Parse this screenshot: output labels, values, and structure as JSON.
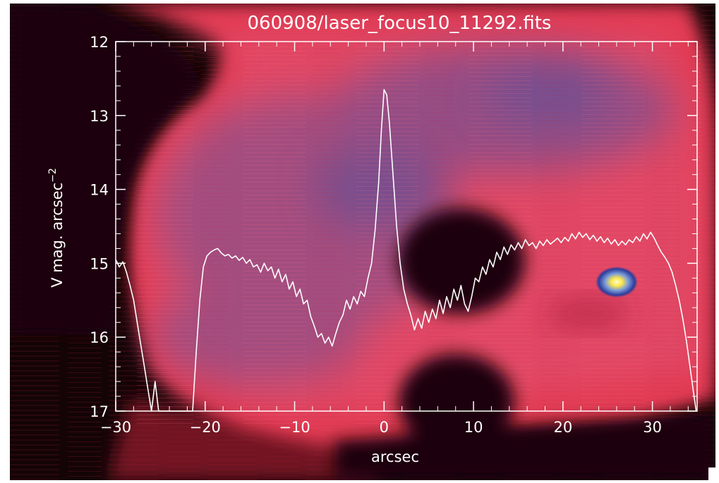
{
  "chart_data": {
    "type": "line",
    "title": "060908/laser_focus10_11292.fits",
    "xlabel": "arcsec",
    "ylabel": "V mag. arcsec",
    "ylabel_superscript": "−2",
    "xlim": [
      -30,
      35
    ],
    "ylim": [
      17,
      12
    ],
    "y_inverted": true,
    "x_ticks": [
      {
        "value": -30,
        "label": "−30"
      },
      {
        "value": -20,
        "label": "−20"
      },
      {
        "value": -10,
        "label": "−10"
      },
      {
        "value": 0,
        "label": "0"
      },
      {
        "value": 10,
        "label": "10"
      },
      {
        "value": 20,
        "label": "20"
      },
      {
        "value": 30,
        "label": "30"
      }
    ],
    "y_ticks": [
      {
        "value": 12,
        "label": "12"
      },
      {
        "value": 13,
        "label": "13"
      },
      {
        "value": 14,
        "label": "14"
      },
      {
        "value": 15,
        "label": "15"
      },
      {
        "value": 16,
        "label": "16"
      },
      {
        "value": 17,
        "label": "17"
      }
    ],
    "grid": false,
    "colors": {
      "line": "#ffffff",
      "background": "#e8465c",
      "dark": "#140406",
      "haze": "#6b5a98",
      "star_core": "#ffe94a"
    },
    "series": [
      {
        "points": [
          [
            -30.0,
            14.95
          ],
          [
            -29.6,
            15.05
          ],
          [
            -29.2,
            14.98
          ],
          [
            -28.8,
            15.12
          ],
          [
            -28.4,
            15.3
          ],
          [
            -28.0,
            15.5
          ],
          [
            -27.6,
            15.8
          ],
          [
            -27.2,
            16.1
          ],
          [
            -26.8,
            16.4
          ],
          [
            -26.4,
            16.7
          ],
          [
            -26.0,
            17.0
          ],
          [
            -25.6,
            16.6
          ],
          [
            -25.2,
            17.0
          ],
          [
            -21.4,
            17.0
          ],
          [
            -21.0,
            16.2
          ],
          [
            -20.6,
            15.5
          ],
          [
            -20.2,
            15.05
          ],
          [
            -19.8,
            14.9
          ],
          [
            -19.4,
            14.85
          ],
          [
            -19.0,
            14.82
          ],
          [
            -18.6,
            14.8
          ],
          [
            -18.2,
            14.86
          ],
          [
            -17.8,
            14.9
          ],
          [
            -17.4,
            14.88
          ],
          [
            -17.0,
            14.93
          ],
          [
            -16.6,
            14.9
          ],
          [
            -16.2,
            14.96
          ],
          [
            -15.8,
            14.92
          ],
          [
            -15.4,
            15.0
          ],
          [
            -15.0,
            14.95
          ],
          [
            -14.6,
            15.05
          ],
          [
            -14.2,
            15.02
          ],
          [
            -13.8,
            15.12
          ],
          [
            -13.4,
            15.0
          ],
          [
            -13.0,
            15.1
          ],
          [
            -12.6,
            15.05
          ],
          [
            -12.2,
            15.2
          ],
          [
            -11.8,
            15.08
          ],
          [
            -11.4,
            15.25
          ],
          [
            -11.0,
            15.15
          ],
          [
            -10.6,
            15.35
          ],
          [
            -10.2,
            15.25
          ],
          [
            -9.8,
            15.45
          ],
          [
            -9.4,
            15.35
          ],
          [
            -9.0,
            15.55
          ],
          [
            -8.6,
            15.5
          ],
          [
            -8.2,
            15.72
          ],
          [
            -7.8,
            15.85
          ],
          [
            -7.4,
            16.0
          ],
          [
            -7.0,
            15.95
          ],
          [
            -6.6,
            16.08
          ],
          [
            -6.2,
            16.0
          ],
          [
            -5.8,
            16.12
          ],
          [
            -5.4,
            15.95
          ],
          [
            -5.0,
            15.8
          ],
          [
            -4.6,
            15.7
          ],
          [
            -4.2,
            15.5
          ],
          [
            -3.8,
            15.62
          ],
          [
            -3.4,
            15.45
          ],
          [
            -3.0,
            15.55
          ],
          [
            -2.6,
            15.38
          ],
          [
            -2.2,
            15.45
          ],
          [
            -1.8,
            15.2
          ],
          [
            -1.4,
            15.0
          ],
          [
            -1.0,
            14.55
          ],
          [
            -0.6,
            13.9
          ],
          [
            -0.3,
            13.2
          ],
          [
            0.0,
            12.65
          ],
          [
            0.3,
            12.72
          ],
          [
            0.6,
            13.1
          ],
          [
            1.0,
            13.8
          ],
          [
            1.4,
            14.5
          ],
          [
            1.8,
            15.0
          ],
          [
            2.2,
            15.35
          ],
          [
            2.6,
            15.55
          ],
          [
            3.0,
            15.7
          ],
          [
            3.4,
            15.9
          ],
          [
            3.8,
            15.75
          ],
          [
            4.2,
            15.88
          ],
          [
            4.6,
            15.65
          ],
          [
            5.0,
            15.8
          ],
          [
            5.4,
            15.62
          ],
          [
            5.8,
            15.75
          ],
          [
            6.2,
            15.5
          ],
          [
            6.6,
            15.68
          ],
          [
            7.0,
            15.45
          ],
          [
            7.4,
            15.6
          ],
          [
            7.8,
            15.35
          ],
          [
            8.2,
            15.5
          ],
          [
            8.6,
            15.3
          ],
          [
            9.0,
            15.55
          ],
          [
            9.4,
            15.65
          ],
          [
            9.8,
            15.45
          ],
          [
            10.2,
            15.2
          ],
          [
            10.6,
            15.25
          ],
          [
            11.0,
            15.05
          ],
          [
            11.4,
            15.15
          ],
          [
            11.8,
            14.95
          ],
          [
            12.2,
            15.05
          ],
          [
            12.6,
            14.85
          ],
          [
            13.0,
            14.95
          ],
          [
            13.4,
            14.78
          ],
          [
            13.8,
            14.88
          ],
          [
            14.2,
            14.75
          ],
          [
            14.6,
            14.82
          ],
          [
            15.0,
            14.72
          ],
          [
            15.4,
            14.8
          ],
          [
            15.8,
            14.68
          ],
          [
            16.2,
            14.76
          ],
          [
            16.6,
            14.72
          ],
          [
            17.0,
            14.8
          ],
          [
            17.4,
            14.7
          ],
          [
            17.8,
            14.76
          ],
          [
            18.2,
            14.68
          ],
          [
            18.6,
            14.74
          ],
          [
            19.0,
            14.7
          ],
          [
            19.4,
            14.66
          ],
          [
            19.8,
            14.72
          ],
          [
            20.2,
            14.65
          ],
          [
            20.6,
            14.7
          ],
          [
            21.0,
            14.6
          ],
          [
            21.4,
            14.67
          ],
          [
            21.8,
            14.58
          ],
          [
            22.2,
            14.65
          ],
          [
            22.6,
            14.6
          ],
          [
            23.0,
            14.68
          ],
          [
            23.4,
            14.62
          ],
          [
            23.8,
            14.7
          ],
          [
            24.2,
            14.64
          ],
          [
            24.6,
            14.72
          ],
          [
            25.0,
            14.66
          ],
          [
            25.4,
            14.74
          ],
          [
            25.8,
            14.68
          ],
          [
            26.2,
            14.76
          ],
          [
            26.6,
            14.7
          ],
          [
            27.0,
            14.75
          ],
          [
            27.4,
            14.68
          ],
          [
            27.8,
            14.72
          ],
          [
            28.2,
            14.64
          ],
          [
            28.6,
            14.7
          ],
          [
            29.0,
            14.6
          ],
          [
            29.4,
            14.67
          ],
          [
            29.8,
            14.58
          ],
          [
            30.2,
            14.66
          ],
          [
            30.6,
            14.76
          ],
          [
            31.0,
            14.85
          ],
          [
            31.4,
            14.92
          ],
          [
            31.8,
            15.0
          ],
          [
            32.2,
            15.12
          ],
          [
            32.6,
            15.3
          ],
          [
            33.0,
            15.5
          ],
          [
            33.4,
            15.75
          ],
          [
            33.8,
            16.05
          ],
          [
            34.2,
            16.4
          ],
          [
            34.6,
            16.75
          ],
          [
            34.9,
            17.0
          ]
        ]
      }
    ]
  }
}
